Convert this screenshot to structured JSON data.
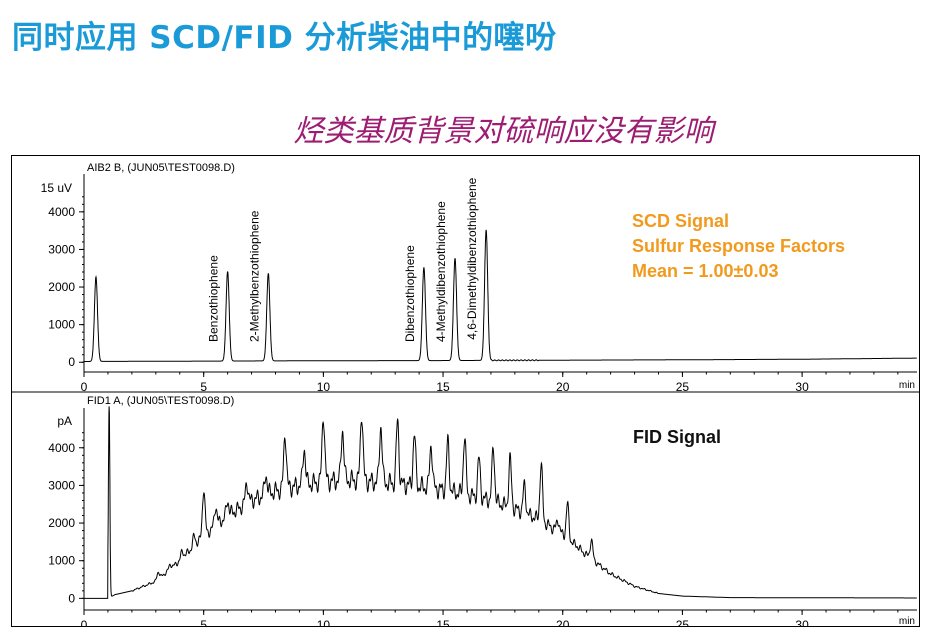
{
  "slide": {
    "title": "同时应用 SCD/FID 分析柴油中的噻吩",
    "subtitle": "烃类基质背景对硫响应没有影响"
  },
  "chart_data": [
    {
      "type": "line",
      "panel_label": "AIB2 B,  (JUN05\\TEST0098.D)",
      "y_unit": "uV",
      "x_unit": "min",
      "xlim": [
        0,
        34.8
      ],
      "ylim": [
        -100,
        4900
      ],
      "x_ticks": [
        0,
        5,
        10,
        15,
        20,
        25,
        30
      ],
      "y_ticks": [
        0,
        1000,
        2000,
        3000,
        4000
      ],
      "baseline": [
        [
          0,
          20
        ],
        [
          5,
          30
        ],
        [
          10,
          40
        ],
        [
          15,
          45
        ],
        [
          20,
          55
        ],
        [
          25,
          65
        ],
        [
          30,
          80
        ],
        [
          34.8,
          110
        ]
      ],
      "peaks": [
        {
          "name": "",
          "x": 0.5,
          "y": 2250
        },
        {
          "name": "Benzothiophene",
          "x": 6.0,
          "y": 2380
        },
        {
          "name": "2-Methylbenzothiophene",
          "x": 7.7,
          "y": 2330
        },
        {
          "name": "Dibenzothiophene",
          "x": 14.2,
          "y": 2480
        },
        {
          "name": "4-Methyldibenzothiophene",
          "x": 15.5,
          "y": 2720
        },
        {
          "name": "4,6-Dimethyldibenzothiophene",
          "x": 16.8,
          "y": 3470
        }
      ],
      "annotation": {
        "lines": [
          "SCD Signal",
          "Sulfur Response Factors",
          "Mean = 1.00±0.03"
        ],
        "color": "#f29a1d"
      }
    },
    {
      "type": "line",
      "panel_label": "FID1 A,  (JUN05\\TEST0098.D)",
      "y_unit": "pA",
      "x_unit": "min",
      "xlim": [
        0,
        34.8
      ],
      "ylim": [
        -150,
        4950
      ],
      "x_ticks": [
        0,
        5,
        10,
        15,
        20,
        25,
        30
      ],
      "y_ticks": [
        0,
        1000,
        2000,
        3000,
        4000
      ],
      "envelope": [
        [
          1.0,
          0
        ],
        [
          1.3,
          100
        ],
        [
          2.0,
          200
        ],
        [
          3.0,
          450
        ],
        [
          4.0,
          1000
        ],
        [
          5.0,
          1650
        ],
        [
          6.0,
          2200
        ],
        [
          7.0,
          2600
        ],
        [
          8.0,
          2850
        ],
        [
          9.0,
          3000
        ],
        [
          10.0,
          3100
        ],
        [
          11.0,
          3150
        ],
        [
          12.0,
          3100
        ],
        [
          13.0,
          3050
        ],
        [
          14.0,
          2980
        ],
        [
          15.0,
          2880
        ],
        [
          16.0,
          2750
        ],
        [
          17.0,
          2600
        ],
        [
          18.0,
          2380
        ],
        [
          19.0,
          2100
        ],
        [
          20.0,
          1700
        ],
        [
          21.0,
          1150
        ],
        [
          22.0,
          650
        ],
        [
          23.0,
          320
        ],
        [
          24.0,
          130
        ],
        [
          25.0,
          60
        ],
        [
          27.0,
          20
        ],
        [
          34.8,
          10
        ]
      ],
      "peaks": [
        {
          "x": 1.05,
          "y": 5200
        },
        {
          "x": 3.1,
          "y": 700
        },
        {
          "x": 3.6,
          "y": 900
        },
        {
          "x": 4.1,
          "y": 1250
        },
        {
          "x": 4.6,
          "y": 1650
        },
        {
          "x": 5.0,
          "y": 2900
        },
        {
          "x": 5.5,
          "y": 2450
        },
        {
          "x": 6.0,
          "y": 2600
        },
        {
          "x": 6.8,
          "y": 3100
        },
        {
          "x": 7.6,
          "y": 3300
        },
        {
          "x": 8.4,
          "y": 4400
        },
        {
          "x": 9.2,
          "y": 4000
        },
        {
          "x": 10.0,
          "y": 4900
        },
        {
          "x": 10.8,
          "y": 4500
        },
        {
          "x": 11.6,
          "y": 4950
        },
        {
          "x": 12.4,
          "y": 4600
        },
        {
          "x": 13.1,
          "y": 4700
        },
        {
          "x": 13.8,
          "y": 4350
        },
        {
          "x": 14.5,
          "y": 4100
        },
        {
          "x": 15.2,
          "y": 4150
        },
        {
          "x": 15.9,
          "y": 4300
        },
        {
          "x": 16.5,
          "y": 3700
        },
        {
          "x": 17.1,
          "y": 4000
        },
        {
          "x": 17.8,
          "y": 3700
        },
        {
          "x": 18.4,
          "y": 3000
        },
        {
          "x": 19.1,
          "y": 3550
        },
        {
          "x": 19.8,
          "y": 2100
        },
        {
          "x": 20.2,
          "y": 2500
        },
        {
          "x": 20.6,
          "y": 1400
        },
        {
          "x": 21.2,
          "y": 1550
        },
        {
          "x": 21.8,
          "y": 650
        },
        {
          "x": 22.2,
          "y": 550
        },
        {
          "x": 23.0,
          "y": 300
        }
      ],
      "annotation": {
        "lines": [
          "FID Signal"
        ],
        "color": "#111111"
      }
    }
  ]
}
